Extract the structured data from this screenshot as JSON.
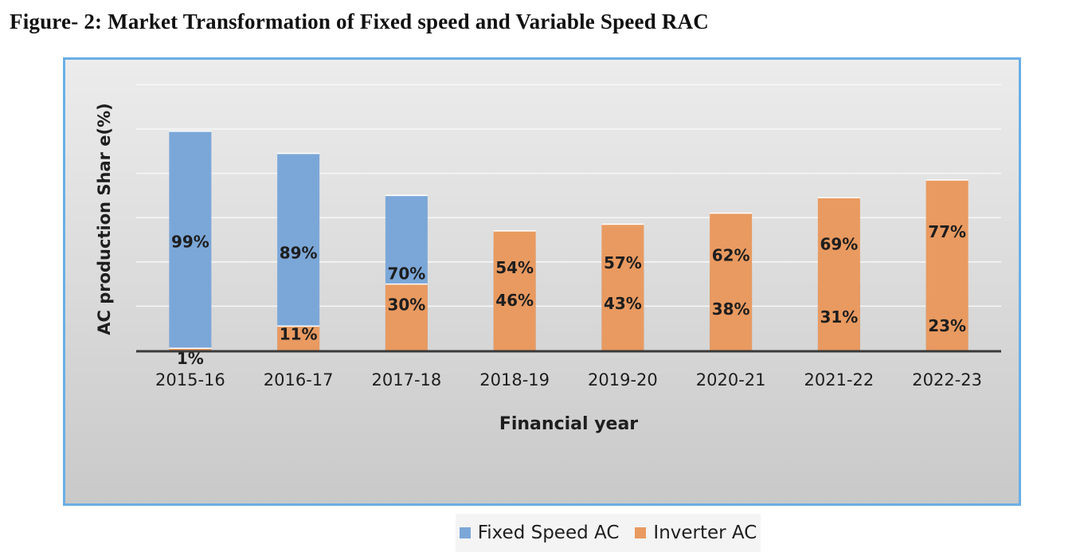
{
  "figure_title": "Figure- 2: Market Transformation of Fixed speed and Variable Speed RAC",
  "chart_data": {
    "type": "bar",
    "stacked": true,
    "categories": [
      "2015-16",
      "2016-17",
      "2017-18",
      "2018-19",
      "2019-20",
      "2020-21",
      "2021-22",
      "2022-23"
    ],
    "series": [
      {
        "name": "Fixed Speed AC",
        "values": [
          99,
          89,
          70,
          46,
          43,
          38,
          31,
          23
        ],
        "labels": [
          "99%",
          "89%",
          "70%",
          "46%",
          "43%",
          "38%",
          "31%",
          "23%"
        ],
        "color": "#7ba7d8"
      },
      {
        "name": "Inverter AC",
        "values": [
          1,
          11,
          30,
          54,
          57,
          62,
          69,
          77
        ],
        "labels": [
          "1%",
          "11%",
          "30%",
          "54%",
          "57%",
          "62%",
          "69%",
          "77%"
        ],
        "color": "#e99a60"
      }
    ],
    "xlabel": "Financial year",
    "ylabel": "AC production Shar e(%)",
    "ylim": [
      0,
      120
    ],
    "grid": true,
    "legend_position": "bottom"
  }
}
